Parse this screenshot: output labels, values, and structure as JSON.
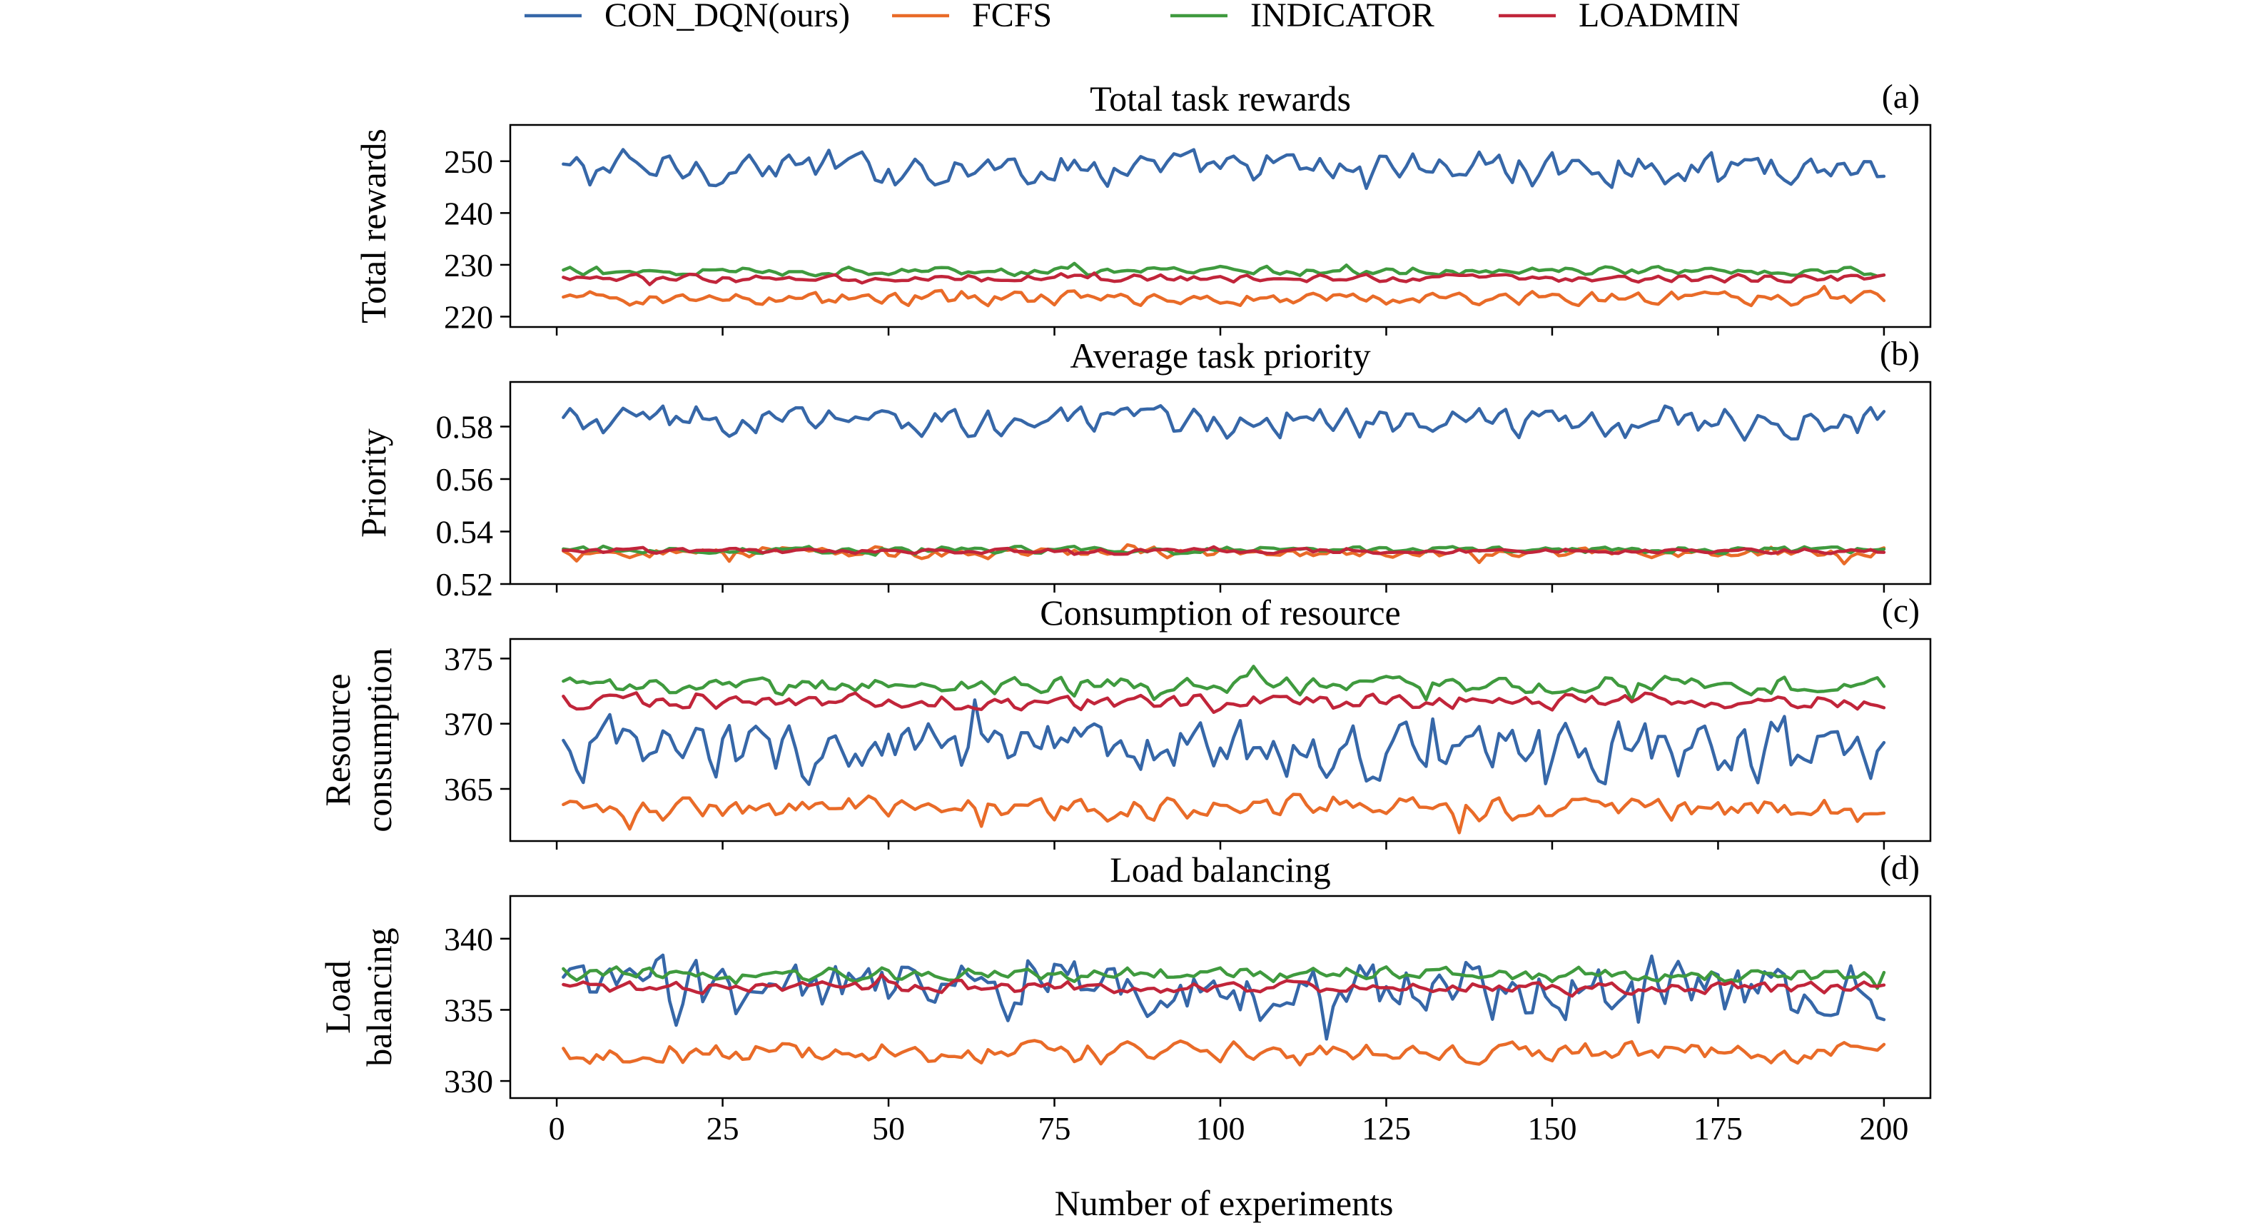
{
  "chart_data": {
    "type": "line",
    "legend": {
      "placement": "top",
      "entries": [
        {
          "name": "CON_DQN(ours)",
          "color": "#3667a8"
        },
        {
          "name": "FCFS",
          "color": "#e96b28"
        },
        {
          "name": "INDICATOR",
          "color": "#3f9a3e"
        },
        {
          "name": "LOADMIN",
          "color": "#c1253a"
        }
      ]
    },
    "xlabel": "Number of experiments",
    "xlim": [
      -7,
      207
    ],
    "xticks": [
      0,
      25,
      50,
      75,
      100,
      125,
      150,
      175,
      200
    ],
    "grid": false,
    "panels": [
      {
        "title": "Total task rewards",
        "label": "(a)",
        "ylabel": [
          "Total rewards"
        ],
        "ylim": [
          218,
          257
        ],
        "yticks": [
          220,
          230,
          240,
          250
        ],
        "series": [
          {
            "name": "CON_DQN(ours)",
            "mean": 248.8,
            "amp": 4.0
          },
          {
            "name": "FCFS",
            "mean": 223.5,
            "amp": 1.6
          },
          {
            "name": "INDICATOR",
            "mean": 228.8,
            "amp": 1.0
          },
          {
            "name": "LOADMIN",
            "mean": 227.4,
            "amp": 0.9
          }
        ]
      },
      {
        "title": "Average task priority",
        "label": "(b)",
        "ylabel": [
          "Priority"
        ],
        "ylim": [
          0.52,
          0.597
        ],
        "yticks": [
          0.52,
          0.54,
          0.56,
          0.58
        ],
        "series": [
          {
            "name": "CON_DQN(ours)",
            "mean": 0.582,
            "amp": 0.007
          },
          {
            "name": "FCFS",
            "mean": 0.532,
            "amp": 0.0025
          },
          {
            "name": "INDICATOR",
            "mean": 0.533,
            "amp": 0.0015
          },
          {
            "name": "LOADMIN",
            "mean": 0.5325,
            "amp": 0.0012
          }
        ]
      },
      {
        "title": "Consumption of resource",
        "label": "(c)",
        "ylabel": [
          "Resource",
          "consumption"
        ],
        "ylim": [
          361,
          376.5
        ],
        "yticks": [
          365,
          370,
          375
        ],
        "series": [
          {
            "name": "CON_DQN(ours)",
            "mean": 368.0,
            "amp": 2.8
          },
          {
            "name": "FCFS",
            "mean": 363.5,
            "amp": 1.1
          },
          {
            "name": "INDICATOR",
            "mean": 373.0,
            "amp": 0.9
          },
          {
            "name": "LOADMIN",
            "mean": 371.7,
            "amp": 0.7
          }
        ]
      },
      {
        "title": "Load balancing",
        "label": "(d)",
        "ylabel": [
          "Load",
          "balancing"
        ],
        "ylim": [
          328.8,
          343
        ],
        "yticks": [
          330,
          335,
          340
        ],
        "series": [
          {
            "name": "CON_DQN(ours)",
            "mean": 336.5,
            "amp": 2.6
          },
          {
            "name": "FCFS",
            "mean": 332.0,
            "amp": 0.9
          },
          {
            "name": "INDICATOR",
            "mean": 337.5,
            "amp": 0.6
          },
          {
            "name": "LOADMIN",
            "mean": 336.6,
            "amp": 0.5
          }
        ]
      }
    ]
  }
}
